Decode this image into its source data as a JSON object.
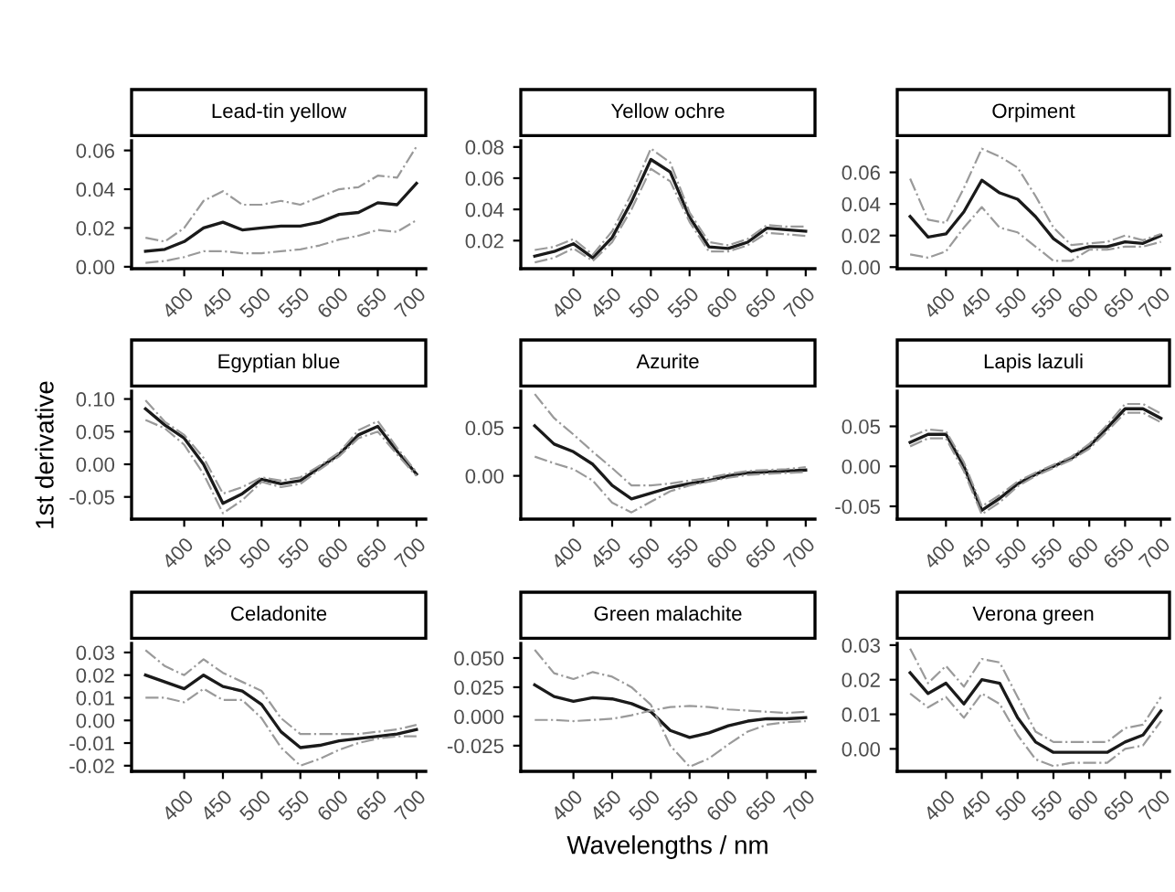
{
  "chart_data": [
    {
      "type": "line",
      "title": "Lead-tin yellow",
      "x": [
        350,
        375,
        400,
        425,
        450,
        475,
        500,
        525,
        550,
        575,
        600,
        625,
        650,
        675,
        700
      ],
      "xlim": [
        332,
        712
      ],
      "xticks": [
        400,
        450,
        500,
        550,
        600,
        650,
        700
      ],
      "ylim": [
        -0.001,
        0.065
      ],
      "yticks": [
        {
          "value": 0,
          "label": "0.00"
        },
        0.02,
        0.04,
        0.06
      ],
      "series": [
        {
          "color": "#1a1a1a",
          "line_style": "solid",
          "values": [
            0.008,
            0.009,
            0.013,
            0.02,
            0.023,
            0.019,
            0.02,
            0.021,
            0.021,
            0.023,
            0.027,
            0.028,
            0.033,
            0.032,
            0.043
          ]
        },
        {
          "color": "#9a9a9a",
          "line_style": "dashed",
          "values": [
            0.015,
            0.013,
            0.02,
            0.034,
            0.039,
            0.032,
            0.032,
            0.034,
            0.032,
            0.036,
            0.04,
            0.041,
            0.047,
            0.046,
            0.062
          ]
        },
        {
          "color": "#9a9a9a",
          "line_style": "dashed",
          "values": [
            0.002,
            0.003,
            0.005,
            0.008,
            0.008,
            0.007,
            0.007,
            0.008,
            0.009,
            0.011,
            0.014,
            0.016,
            0.019,
            0.018,
            0.024
          ]
        }
      ]
    },
    {
      "type": "line",
      "title": "Yellow ochre",
      "x": [
        350,
        375,
        400,
        425,
        450,
        475,
        500,
        525,
        550,
        575,
        600,
        625,
        650,
        675,
        700
      ],
      "xlim": [
        332,
        712
      ],
      "xticks": [
        400,
        450,
        500,
        550,
        600,
        650,
        700
      ],
      "ylim": [
        0.002,
        0.084
      ],
      "yticks": [
        0.02,
        0.04,
        0.06,
        0.08
      ],
      "series": [
        {
          "color": "#1a1a1a",
          "line_style": "solid",
          "values": [
            0.01,
            0.013,
            0.018,
            0.009,
            0.022,
            0.045,
            0.072,
            0.064,
            0.035,
            0.016,
            0.015,
            0.019,
            0.028,
            0.027,
            0.026
          ]
        },
        {
          "color": "#9a9a9a",
          "line_style": "dashed",
          "values": [
            0.014,
            0.016,
            0.021,
            0.011,
            0.026,
            0.05,
            0.079,
            0.07,
            0.038,
            0.019,
            0.017,
            0.021,
            0.03,
            0.029,
            0.029
          ]
        },
        {
          "color": "#9a9a9a",
          "line_style": "dashed",
          "values": [
            0.006,
            0.009,
            0.015,
            0.007,
            0.019,
            0.04,
            0.066,
            0.058,
            0.032,
            0.013,
            0.013,
            0.017,
            0.025,
            0.024,
            0.023
          ]
        }
      ]
    },
    {
      "type": "line",
      "title": "Orpiment",
      "x": [
        350,
        375,
        400,
        425,
        450,
        475,
        500,
        525,
        550,
        575,
        600,
        625,
        650,
        675,
        700
      ],
      "xlim": [
        332,
        712
      ],
      "xticks": [
        400,
        450,
        500,
        550,
        600,
        650,
        700
      ],
      "ylim": [
        -0.001,
        0.08
      ],
      "yticks": [
        {
          "value": 0,
          "label": "0.00"
        },
        0.02,
        0.04,
        0.06
      ],
      "series": [
        {
          "color": "#1a1a1a",
          "line_style": "solid",
          "values": [
            0.032,
            0.019,
            0.021,
            0.035,
            0.055,
            0.047,
            0.043,
            0.032,
            0.018,
            0.01,
            0.013,
            0.013,
            0.016,
            0.015,
            0.02
          ]
        },
        {
          "color": "#9a9a9a",
          "line_style": "dashed",
          "values": [
            0.056,
            0.03,
            0.028,
            0.05,
            0.075,
            0.07,
            0.063,
            0.045,
            0.025,
            0.014,
            0.015,
            0.016,
            0.02,
            0.017,
            0.021
          ]
        },
        {
          "color": "#9a9a9a",
          "line_style": "dashed",
          "values": [
            0.008,
            0.006,
            0.01,
            0.025,
            0.038,
            0.025,
            0.022,
            0.013,
            0.004,
            0.004,
            0.011,
            0.011,
            0.013,
            0.013,
            0.016
          ]
        }
      ]
    },
    {
      "type": "line",
      "title": "Egyptian blue",
      "ylabel": "1st derivative",
      "x": [
        350,
        375,
        400,
        425,
        450,
        475,
        500,
        525,
        550,
        575,
        600,
        625,
        650,
        675,
        700
      ],
      "xlim": [
        332,
        712
      ],
      "xticks": [
        400,
        450,
        500,
        550,
        600,
        650,
        700
      ],
      "ylim": [
        -0.084,
        0.112
      ],
      "yticks": [
        {
          "value": -0.05,
          "label": "-0.05"
        },
        {
          "value": 0,
          "label": "0.00"
        },
        0.05,
        {
          "value": 0.1,
          "label": "0.10"
        }
      ],
      "series": [
        {
          "color": "#1a1a1a",
          "line_style": "solid",
          "values": [
            0.085,
            0.06,
            0.04,
            0.0,
            -0.06,
            -0.045,
            -0.023,
            -0.03,
            -0.025,
            -0.005,
            0.015,
            0.045,
            0.058,
            0.02,
            -0.015
          ]
        },
        {
          "color": "#9a9a9a",
          "line_style": "dashed",
          "values": [
            0.098,
            0.065,
            0.045,
            0.01,
            -0.045,
            -0.035,
            -0.02,
            -0.025,
            -0.02,
            -0.002,
            0.018,
            0.052,
            0.066,
            0.025,
            -0.012
          ]
        },
        {
          "color": "#9a9a9a",
          "line_style": "dashed",
          "values": [
            0.068,
            0.055,
            0.03,
            -0.015,
            -0.075,
            -0.055,
            -0.027,
            -0.035,
            -0.03,
            -0.008,
            0.012,
            0.04,
            0.05,
            0.015,
            -0.018
          ]
        }
      ]
    },
    {
      "type": "line",
      "title": "Azurite",
      "x": [
        350,
        375,
        400,
        425,
        450,
        475,
        500,
        525,
        550,
        575,
        600,
        625,
        650,
        675,
        700
      ],
      "xlim": [
        332,
        712
      ],
      "xticks": [
        400,
        450,
        500,
        550,
        600,
        650,
        700
      ],
      "ylim": [
        -0.045,
        0.088
      ],
      "yticks": [
        {
          "value": 0,
          "label": "0.00"
        },
        0.05
      ],
      "series": [
        {
          "color": "#1a1a1a",
          "line_style": "solid",
          "values": [
            0.052,
            0.033,
            0.025,
            0.012,
            -0.01,
            -0.024,
            -0.018,
            -0.012,
            -0.008,
            -0.005,
            0.0,
            0.003,
            0.004,
            0.005,
            0.006
          ]
        },
        {
          "color": "#9a9a9a",
          "line_style": "dashed",
          "values": [
            0.085,
            0.06,
            0.043,
            0.025,
            0.008,
            -0.01,
            -0.01,
            -0.008,
            -0.005,
            -0.002,
            0.002,
            0.005,
            0.006,
            0.007,
            0.009
          ]
        },
        {
          "color": "#9a9a9a",
          "line_style": "dashed",
          "values": [
            0.02,
            0.013,
            0.007,
            -0.005,
            -0.028,
            -0.038,
            -0.027,
            -0.016,
            -0.01,
            -0.006,
            -0.002,
            0.001,
            0.002,
            0.003,
            0.004
          ]
        }
      ]
    },
    {
      "type": "line",
      "title": "Lapis lazuli",
      "x": [
        350,
        375,
        400,
        425,
        450,
        475,
        500,
        525,
        550,
        575,
        600,
        625,
        650,
        675,
        700
      ],
      "xlim": [
        332,
        712
      ],
      "xticks": [
        400,
        450,
        500,
        550,
        600,
        650,
        700
      ],
      "ylim": [
        -0.066,
        0.094
      ],
      "yticks": [
        {
          "value": -0.05,
          "label": "-0.05"
        },
        {
          "value": 0,
          "label": "0.00"
        },
        0.05
      ],
      "series": [
        {
          "color": "#1a1a1a",
          "line_style": "solid",
          "values": [
            0.03,
            0.04,
            0.04,
            0.0,
            -0.055,
            -0.04,
            -0.022,
            -0.01,
            0.0,
            0.01,
            0.025,
            0.048,
            0.072,
            0.072,
            0.06
          ]
        },
        {
          "color": "#9a9a9a",
          "line_style": "dashed",
          "values": [
            0.037,
            0.046,
            0.044,
            0.005,
            -0.05,
            -0.036,
            -0.019,
            -0.008,
            0.002,
            0.012,
            0.028,
            0.052,
            0.078,
            0.078,
            0.066
          ]
        },
        {
          "color": "#9a9a9a",
          "line_style": "dashed",
          "values": [
            0.025,
            0.035,
            0.035,
            -0.006,
            -0.06,
            -0.045,
            -0.025,
            -0.012,
            -0.002,
            0.008,
            0.022,
            0.044,
            0.067,
            0.067,
            0.055
          ]
        }
      ]
    },
    {
      "type": "line",
      "title": "Celadonite",
      "x": [
        350,
        375,
        400,
        425,
        450,
        475,
        500,
        525,
        550,
        575,
        600,
        625,
        650,
        675,
        700
      ],
      "xlim": [
        332,
        712
      ],
      "xticks": [
        400,
        450,
        500,
        550,
        600,
        650,
        700
      ],
      "ylim": [
        -0.0225,
        0.034
      ],
      "yticks": [
        {
          "value": -0.02,
          "label": "-0.02"
        },
        {
          "value": -0.01,
          "label": "-0.01"
        },
        {
          "value": 0,
          "label": "0.00"
        },
        0.01,
        0.02,
        0.03
      ],
      "series": [
        {
          "color": "#1a1a1a",
          "line_style": "solid",
          "values": [
            0.02,
            0.017,
            0.014,
            0.02,
            0.015,
            0.013,
            0.007,
            -0.005,
            -0.012,
            -0.011,
            -0.009,
            -0.008,
            -0.007,
            -0.006,
            -0.004
          ]
        },
        {
          "color": "#9a9a9a",
          "line_style": "dashed",
          "values": [
            0.031,
            0.024,
            0.02,
            0.027,
            0.021,
            0.017,
            0.013,
            0.001,
            -0.006,
            -0.006,
            -0.006,
            -0.006,
            -0.005,
            -0.004,
            -0.002
          ]
        },
        {
          "color": "#9a9a9a",
          "line_style": "dashed",
          "values": [
            0.01,
            0.01,
            0.008,
            0.014,
            0.009,
            0.009,
            0.001,
            -0.012,
            -0.02,
            -0.017,
            -0.013,
            -0.01,
            -0.008,
            -0.007,
            -0.007
          ]
        }
      ]
    },
    {
      "type": "line",
      "title": "Green malachite",
      "xlabel": "Wavelengths / nm",
      "x": [
        350,
        375,
        400,
        425,
        450,
        475,
        500,
        525,
        550,
        575,
        600,
        625,
        650,
        675,
        700
      ],
      "xlim": [
        332,
        712
      ],
      "xticks": [
        400,
        450,
        500,
        550,
        600,
        650,
        700
      ],
      "ylim": [
        -0.047,
        0.0625
      ],
      "yticks": [
        {
          "value": -0.025,
          "label": "-0.025"
        },
        {
          "value": 0,
          "label": "0.000"
        },
        0.025,
        {
          "value": 0.05,
          "label": "0.050"
        }
      ],
      "series": [
        {
          "color": "#1a1a1a",
          "line_style": "solid",
          "values": [
            0.027,
            0.017,
            0.013,
            0.016,
            0.015,
            0.011,
            0.004,
            -0.012,
            -0.018,
            -0.014,
            -0.008,
            -0.004,
            -0.002,
            -0.002,
            -0.001
          ]
        },
        {
          "color": "#9a9a9a",
          "line_style": "dashed",
          "values": [
            0.057,
            0.037,
            0.032,
            0.038,
            0.034,
            0.025,
            0.01,
            -0.025,
            -0.043,
            -0.036,
            -0.024,
            -0.013,
            -0.007,
            -0.005,
            -0.004
          ]
        },
        {
          "color": "#9a9a9a",
          "line_style": "dashed",
          "values": [
            -0.003,
            -0.003,
            -0.004,
            -0.003,
            -0.002,
            0.001,
            0.005,
            0.008,
            0.009,
            0.008,
            0.006,
            0.005,
            0.004,
            0.003,
            0.004
          ]
        }
      ]
    },
    {
      "type": "line",
      "title": "Verona green",
      "x": [
        350,
        375,
        400,
        425,
        450,
        475,
        500,
        525,
        550,
        575,
        600,
        625,
        650,
        675,
        700
      ],
      "xlim": [
        332,
        712
      ],
      "xticks": [
        400,
        450,
        500,
        550,
        600,
        650,
        700
      ],
      "ylim": [
        -0.0065,
        0.0305
      ],
      "yticks": [
        {
          "value": 0,
          "label": "0.00"
        },
        0.01,
        0.02,
        0.03
      ],
      "series": [
        {
          "color": "#1a1a1a",
          "line_style": "solid",
          "values": [
            0.022,
            0.016,
            0.019,
            0.013,
            0.02,
            0.019,
            0.009,
            0.002,
            -0.001,
            -0.001,
            -0.001,
            -0.001,
            0.002,
            0.004,
            0.011
          ]
        },
        {
          "color": "#9a9a9a",
          "line_style": "dashed",
          "values": [
            0.029,
            0.019,
            0.024,
            0.018,
            0.026,
            0.025,
            0.015,
            0.005,
            0.002,
            0.002,
            0.002,
            0.002,
            0.006,
            0.007,
            0.015
          ]
        },
        {
          "color": "#9a9a9a",
          "line_style": "dashed",
          "values": [
            0.016,
            0.012,
            0.015,
            0.009,
            0.016,
            0.013,
            0.004,
            -0.003,
            -0.005,
            -0.004,
            -0.004,
            -0.004,
            0.0,
            0.001,
            0.008
          ]
        }
      ]
    }
  ]
}
